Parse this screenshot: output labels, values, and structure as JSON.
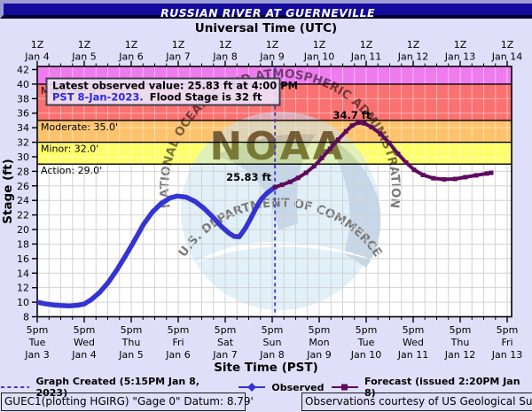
{
  "title": "RUSSIAN RIVER AT GUERNEVILLE",
  "top_axis": {
    "title": "Universal Time (UTC)",
    "tick_label": "1Z",
    "dates": [
      "Jan 4",
      "Jan 5",
      "Jan 6",
      "Jan 7",
      "Jan 8",
      "Jan 9",
      "Jan 10",
      "Jan 11",
      "Jan 12",
      "Jan 13",
      "Jan 14"
    ]
  },
  "bottom_axis": {
    "title": "Site Time (PST)",
    "time_label": "5pm",
    "days": [
      "Tue",
      "Wed",
      "Thu",
      "Fri",
      "Sat",
      "Sun",
      "Mon",
      "Tue",
      "Wed",
      "Thu",
      "Fri"
    ],
    "dates": [
      "Jan 3",
      "Jan 4",
      "Jan 5",
      "Jan 6",
      "Jan 7",
      "Jan 8",
      "Jan 9",
      "Jan 10",
      "Jan 11",
      "Jan 12",
      "Jan 13"
    ]
  },
  "y_axis": {
    "label": "Stage (ft)",
    "min": 8,
    "max": 42,
    "step": 2,
    "ticks": [
      42,
      40,
      38,
      36,
      34,
      32,
      30,
      28,
      26,
      24,
      22,
      20,
      18,
      16,
      14,
      12,
      10,
      8
    ]
  },
  "flood_categories": [
    {
      "name": "major",
      "label": "Major: 40.0'",
      "stage": 40,
      "band_color": "#ee7cee",
      "label_color": "#97929f"
    },
    {
      "name": "moderate",
      "label": "Moderate: 35.0'",
      "stage": 35,
      "band_color": "#fa7171",
      "label_color": "#141414"
    },
    {
      "name": "minor",
      "label": "Minor: 32.0'",
      "stage": 32,
      "band_color": "#fcc36c",
      "label_color": "#141414"
    },
    {
      "name": "action",
      "label": "Action: 29.0'",
      "stage": 29,
      "band_color": "#ffff6b",
      "label_color": "#141414"
    }
  ],
  "annotation": {
    "line1": "Latest observed value: 25.83 ft at 4:00 PM",
    "line2_blue": "PST 8-Jan-2023.",
    "line2_black": "Flood Stage is 32 ft"
  },
  "point_labels": {
    "observed_latest": "25.83 ft",
    "forecast_crest": "34.7 ft"
  },
  "legend": {
    "created": "Graph Created (5:15PM Jan 8, 2023)",
    "observed": "Observed",
    "forecast": "Forecast (issued 2:20PM Jan 8)"
  },
  "footer": {
    "left": "GUEC1(plotting HGIRG) \"Gage 0\" Datum: 8.79'",
    "right": "Observations courtesy of US Geological Survey"
  },
  "watermark": {
    "acronym": "NOAA",
    "top_text": "NATIONAL OCEANIC AND ATMOSPHERIC ADMINISTRATION",
    "bottom_text": "U.S. DEPARTMENT OF COMMERCE"
  },
  "colors": {
    "background": "#dfdff9",
    "titlebar": "#120a9b",
    "titlebar_light": "#9c9cd4",
    "titlebar_shadow": "#04042f",
    "plot_bg": "#ffffff",
    "grid": "#d2d2d2",
    "grid_on_bands": "rgba(255,255,255,0.45)",
    "observed": "#3434d3",
    "forecast": "#5e0a5e",
    "created_line": "#3c3ccd",
    "label_blue": "#2a2ada",
    "label_purple": "#5e0a5e",
    "annotation_fill": "rgba(235,227,249,0.9)",
    "annotation_border": "#3f3f4a",
    "watermark_disk": "#c7e3f5",
    "watermark_slate": "#93b4d6",
    "watermark_text": "#b7d0e8",
    "watermark_tan": "#c99e55"
  },
  "chart_data": {
    "type": "line",
    "title": "RUSSIAN RIVER AT GUERNEVILLE stage hydrograph",
    "x_unit": "days since 5:00 PM PST Jan 3, 2023 (1 day per bottom-axis tick)",
    "ylabel": "Stage (ft)",
    "ylim": [
      8,
      42
    ],
    "xlim": [
      0,
      10.09
    ],
    "grid": true,
    "flood_stage_ft": 32,
    "thresholds": {
      "action": 29.0,
      "minor": 32.0,
      "moderate": 35.0,
      "major": 40.0
    },
    "graph_created_day": 5.06,
    "latest_observed": {
      "day": 5.06,
      "stage": 25.83
    },
    "crest": {
      "day": 6.83,
      "stage": 34.7
    },
    "series": [
      {
        "name": "Observed",
        "color": "#3434d3",
        "points": [
          [
            0,
            10.0
          ],
          [
            0.15,
            9.8
          ],
          [
            0.34,
            9.62
          ],
          [
            0.49,
            9.55
          ],
          [
            0.68,
            9.5
          ],
          [
            0.87,
            9.58
          ],
          [
            1.0,
            9.75
          ],
          [
            1.15,
            10.35
          ],
          [
            1.32,
            11.3
          ],
          [
            1.51,
            12.7
          ],
          [
            1.7,
            14.5
          ],
          [
            1.89,
            16.5
          ],
          [
            2.08,
            18.6
          ],
          [
            2.26,
            20.7
          ],
          [
            2.45,
            22.4
          ],
          [
            2.64,
            23.6
          ],
          [
            2.83,
            24.35
          ],
          [
            2.98,
            24.6
          ],
          [
            3.17,
            24.45
          ],
          [
            3.36,
            23.85
          ],
          [
            3.55,
            22.9
          ],
          [
            3.74,
            21.7
          ],
          [
            3.92,
            20.4
          ],
          [
            4.08,
            19.5
          ],
          [
            4.19,
            19.05
          ],
          [
            4.3,
            19.0
          ],
          [
            4.43,
            20.2
          ],
          [
            4.55,
            21.6
          ],
          [
            4.66,
            23.0
          ],
          [
            4.77,
            24.2
          ],
          [
            4.89,
            25.0
          ],
          [
            4.98,
            25.45
          ],
          [
            5.06,
            25.83
          ]
        ]
      },
      {
        "name": "Forecast",
        "color": "#5e0a5e",
        "points": [
          [
            5.06,
            25.83
          ],
          [
            5.21,
            26.15
          ],
          [
            5.38,
            26.55
          ],
          [
            5.55,
            27.1
          ],
          [
            5.72,
            27.8
          ],
          [
            5.89,
            28.7
          ],
          [
            6.06,
            29.85
          ],
          [
            6.23,
            31.1
          ],
          [
            6.4,
            32.35
          ],
          [
            6.57,
            33.5
          ],
          [
            6.7,
            34.3
          ],
          [
            6.83,
            34.7
          ],
          [
            6.96,
            34.6
          ],
          [
            7.11,
            34.1
          ],
          [
            7.3,
            33.2
          ],
          [
            7.49,
            31.9
          ],
          [
            7.68,
            30.4
          ],
          [
            7.85,
            29.2
          ],
          [
            8.02,
            28.2
          ],
          [
            8.21,
            27.5
          ],
          [
            8.43,
            27.05
          ],
          [
            8.66,
            26.9
          ],
          [
            8.89,
            26.95
          ],
          [
            9.11,
            27.2
          ],
          [
            9.34,
            27.45
          ],
          [
            9.57,
            27.7
          ],
          [
            9.66,
            27.8
          ]
        ]
      }
    ]
  }
}
